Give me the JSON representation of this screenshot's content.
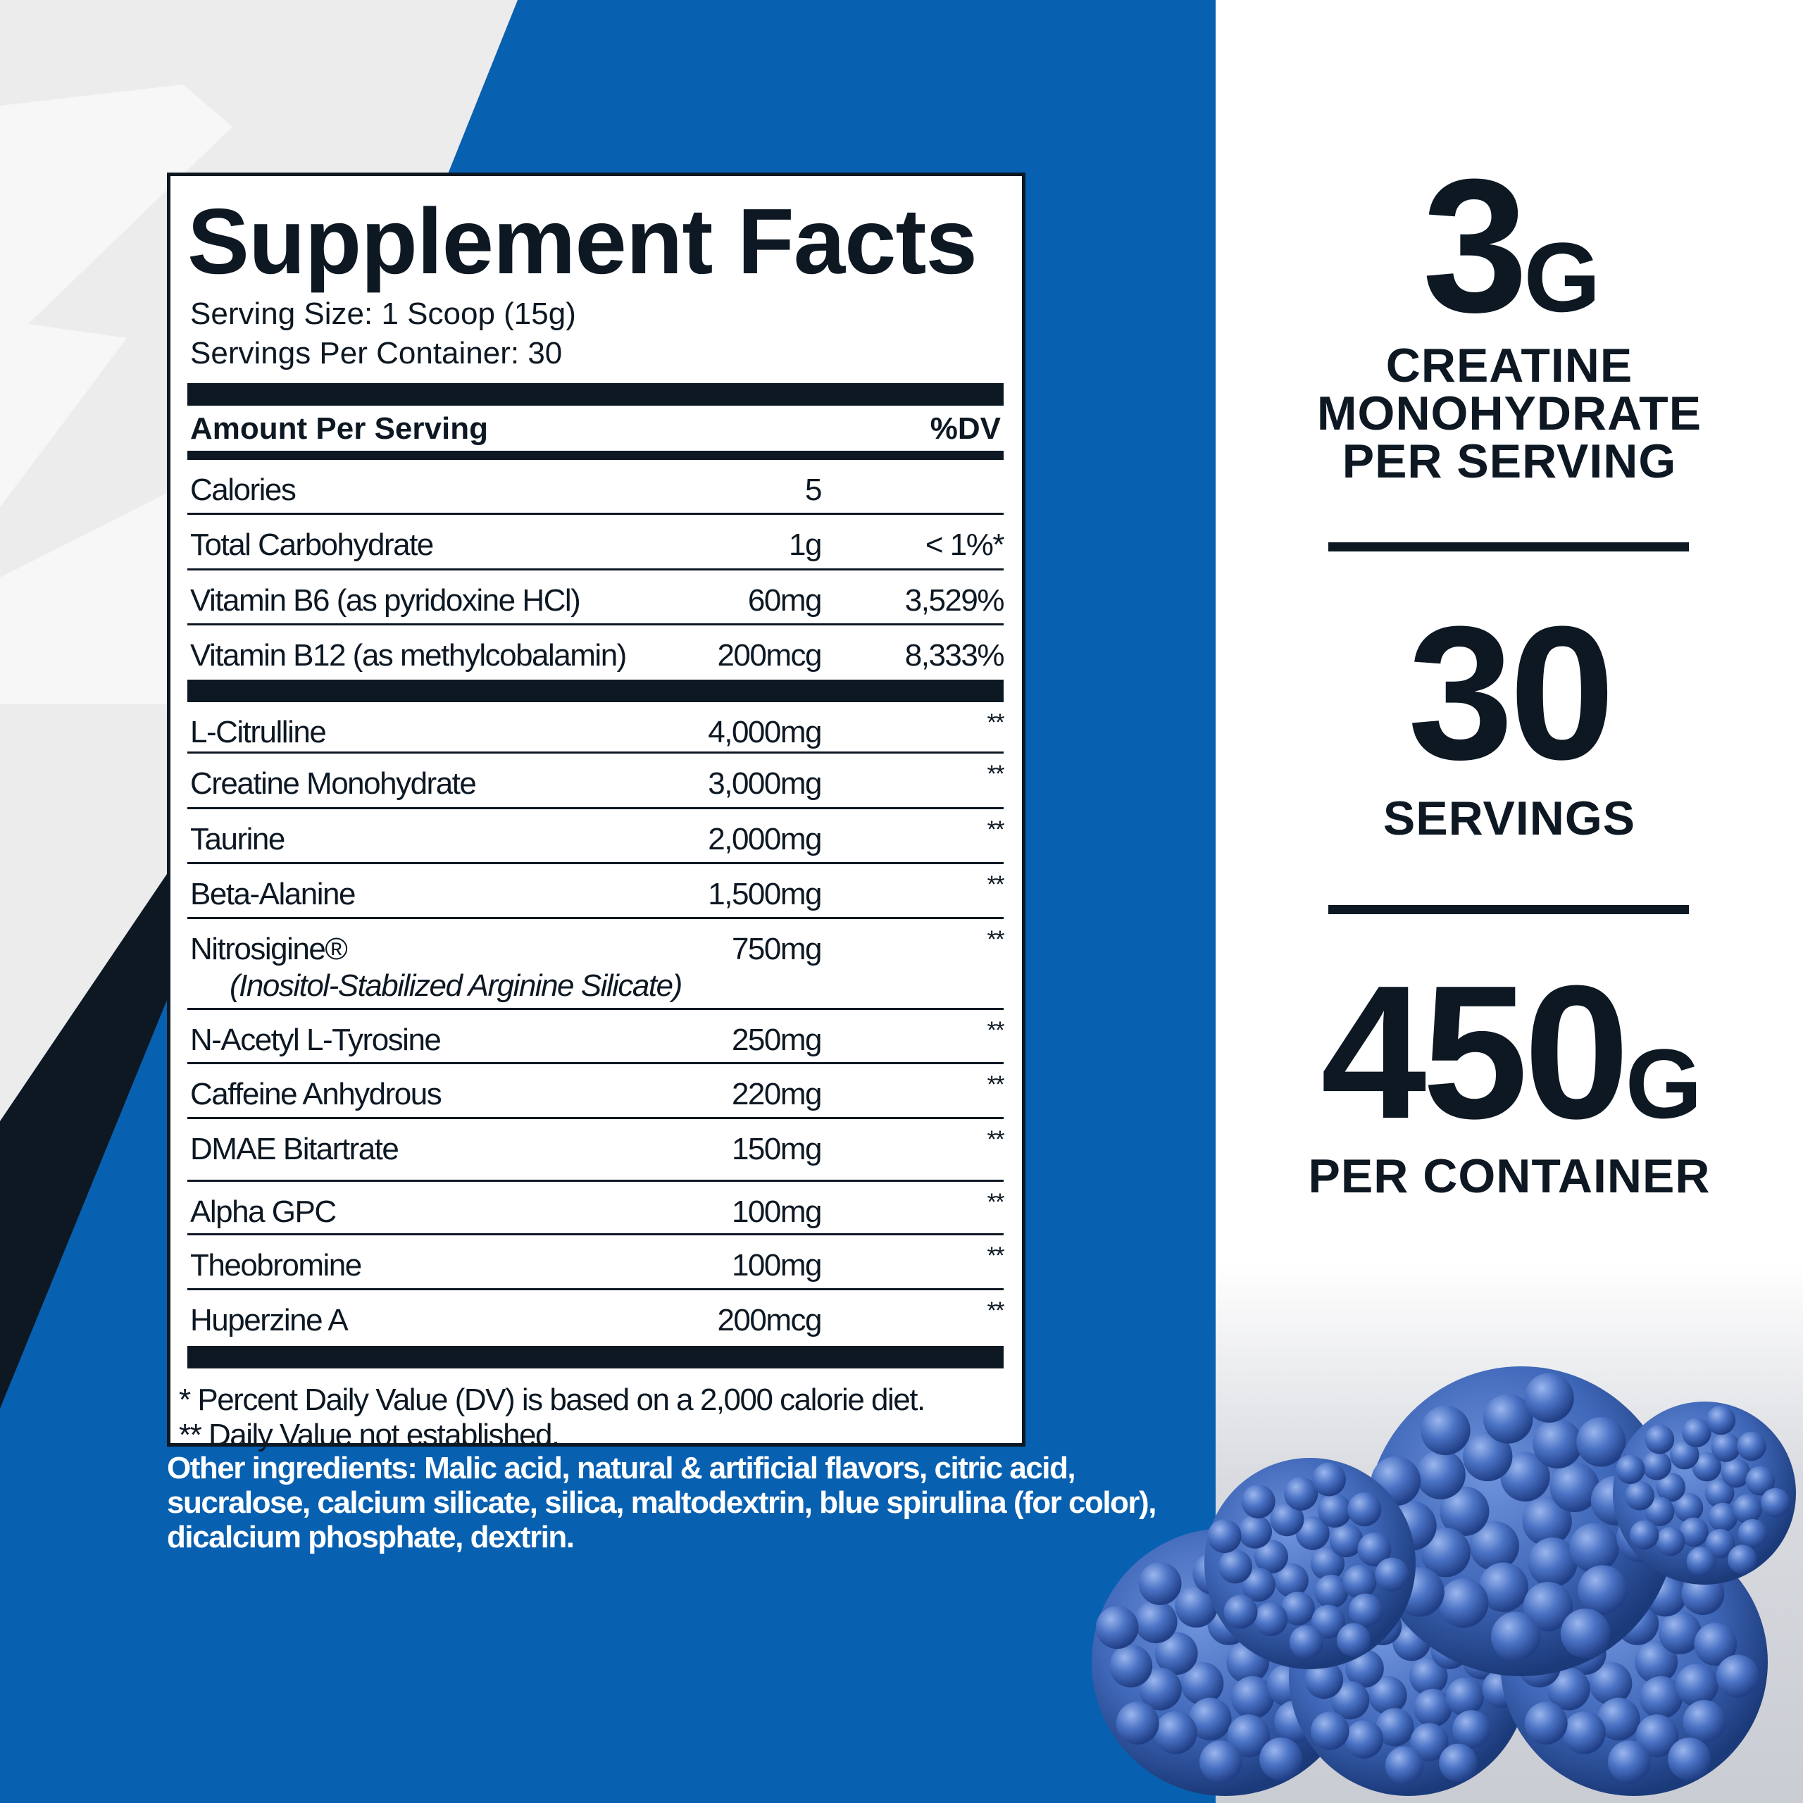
{
  "colors": {
    "blue": "#0860b0",
    "navy": "#0d1823",
    "light_gray": "#ececed",
    "berry": "#3f67b8"
  },
  "panel": {
    "title": "Supplement Facts",
    "serving_size": "Serving Size: 1 Scoop (15g)",
    "servings_per_container": "Servings Per Container: 30",
    "header_left": "Amount Per Serving",
    "header_right": "%DV",
    "nutrients": [
      {
        "name": "Calories",
        "amount": "5",
        "dv": ""
      },
      {
        "name": "Total Carbohydrate",
        "amount": "1g",
        "dv": "< 1%*"
      },
      {
        "name": "Vitamin B6 (as pyridoxine HCl)",
        "amount": "60mg",
        "dv": "3,529%"
      },
      {
        "name": "Vitamin B12 (as methylcobalamin)",
        "amount": "200mcg",
        "dv": "8,333%"
      }
    ],
    "ingredients": [
      {
        "name": "L-Citrulline",
        "amount": "4,000mg",
        "dv": "**"
      },
      {
        "name": "Creatine Monohydrate",
        "amount": "3,000mg",
        "dv": "**"
      },
      {
        "name": "Taurine",
        "amount": "2,000mg",
        "dv": "**"
      },
      {
        "name": "Beta-Alanine",
        "amount": "1,500mg",
        "dv": "**"
      },
      {
        "name": "Nitrosigine®",
        "sub": "(Inositol-Stabilized Arginine Silicate)",
        "amount": "750mg",
        "dv": "**"
      },
      {
        "name": "N-Acetyl L-Tyrosine",
        "amount": "250mg",
        "dv": "**"
      },
      {
        "name": "Caffeine Anhydrous",
        "amount": "220mg",
        "dv": "**"
      },
      {
        "name": "DMAE Bitartrate",
        "amount": "150mg",
        "dv": "**"
      },
      {
        "name": "Alpha GPC",
        "amount": "100mg",
        "dv": "**"
      },
      {
        "name": "Theobromine",
        "amount": "100mg",
        "dv": "**"
      },
      {
        "name": "Huperzine A",
        "amount": "200mcg",
        "dv": "**"
      }
    ],
    "footnote_1": "* Percent Daily Value (DV) is based on a 2,000 calorie diet.",
    "footnote_2": "** Daily Value not established."
  },
  "other_ingredients": "Other ingredients: Malic acid, natural & artificial flavors, citric acid, sucralose, calcium silicate, silica, maltodextrin, blue spirulina (for color), dicalcium phosphate, dextrin.",
  "stats": {
    "creatine_value": "3",
    "creatine_unit": "G",
    "creatine_label": [
      "CREATINE",
      "MONOHYDRATE",
      "PER SERVING"
    ],
    "servings_value": "30",
    "servings_label": "SERVINGS",
    "weight_value": "450",
    "weight_unit": "G",
    "weight_label": "PER CONTAINER"
  }
}
